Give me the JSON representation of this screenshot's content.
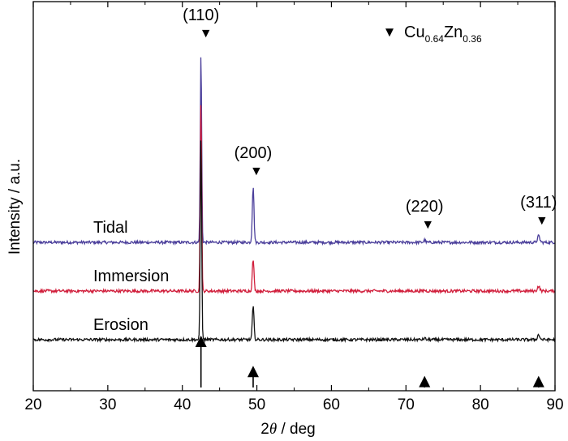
{
  "chart_data": {
    "type": "line",
    "title": "",
    "xlabel_prefix": "2",
    "xlabel_symbol": "θ",
    "xlabel_suffix": " / deg",
    "ylabel": "Intensity / a.u.",
    "xlim": [
      20,
      90
    ],
    "x_ticks": [
      20,
      30,
      40,
      50,
      60,
      70,
      80,
      90
    ],
    "y_ticks_shown": false,
    "legend": {
      "marker": "▼",
      "label_main1": "Cu",
      "label_sub1": "0.64",
      "label_main2": "Zn",
      "label_sub2": "0.36",
      "position": "top-right"
    },
    "series": [
      {
        "name": "Tidal",
        "color": "#4b3f9b",
        "baseline": 2.0,
        "peaks": [
          [
            42.5,
            3.9
          ],
          [
            49.5,
            1.15
          ],
          [
            72.5,
            0.05
          ],
          [
            87.8,
            0.13
          ]
        ]
      },
      {
        "name": "Immersion",
        "color": "#d11f3c",
        "baseline": 1.0,
        "peaks": [
          [
            42.5,
            3.9
          ],
          [
            49.5,
            0.65
          ],
          [
            72.5,
            0.02
          ],
          [
            87.8,
            0.1
          ]
        ]
      },
      {
        "name": "Erosion",
        "color": "#111111",
        "baseline": 0.0,
        "peaks": [
          [
            42.5,
            4.2
          ],
          [
            49.5,
            0.68
          ],
          [
            72.5,
            0.03
          ],
          [
            87.8,
            0.1
          ]
        ]
      }
    ],
    "peak_labels": [
      {
        "hkl": "(110)",
        "x": 42.5
      },
      {
        "hkl": "(200)",
        "x": 49.5
      },
      {
        "hkl": "(220)",
        "x": 72.5
      },
      {
        "hkl": "(311)",
        "x": 87.8
      }
    ],
    "reference_arrows": [
      {
        "x": 42.5,
        "intensity": 1.0
      },
      {
        "x": 49.5,
        "intensity": 0.4
      },
      {
        "x": 72.5,
        "intensity": 0.2
      },
      {
        "x": 87.8,
        "intensity": 0.2
      }
    ]
  }
}
